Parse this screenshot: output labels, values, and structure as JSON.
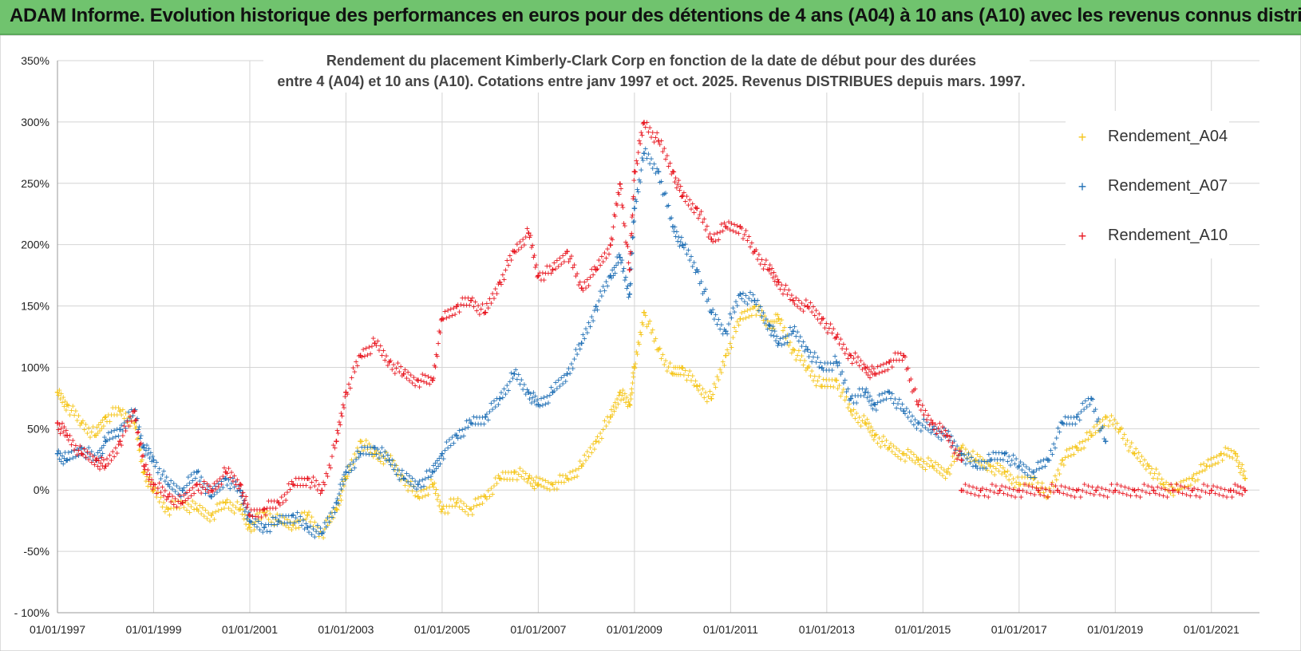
{
  "banner": {
    "title": "ADAM Informe. Evolution historique des performances en euros pour des détentions de 4 ans (A04) à 10 ans (A10) avec les revenus connus distribués"
  },
  "colors": {
    "banner": "#70c36e",
    "a04": "#f5c518",
    "a07": "#1f6fb5",
    "a10": "#e8131d",
    "grid": "#d4d4d4"
  },
  "chart_data": {
    "type": "scatter",
    "title_lines": [
      "Rendement du placement Kimberly-Clark Corp en fonction de la date de début pour des durées",
      "entre 4 (A04) et 10 ans (A10).  Cotations entre janv 1997 et oct. 2025.  Revenus DISTRIBUES depuis mars. 1997."
    ],
    "xlabel": "",
    "ylabel": "",
    "xlim": [
      1997.0,
      2022.0
    ],
    "ylim": [
      -100,
      350
    ],
    "y_ticks": [
      350,
      300,
      250,
      200,
      150,
      100,
      50,
      0,
      -50,
      -100
    ],
    "y_tick_labels": [
      "350%",
      "300%",
      "250%",
      "200%",
      "150%",
      "100%",
      "50%",
      "0%",
      "-50%",
      "- 100%"
    ],
    "x_ticks": [
      1997,
      1999,
      2001,
      2003,
      2005,
      2007,
      2009,
      2011,
      2013,
      2015,
      2017,
      2019,
      2021
    ],
    "x_tick_labels": [
      "01/01/1997",
      "01/01/1999",
      "01/01/2001",
      "01/01/2003",
      "01/01/2005",
      "01/01/2007",
      "01/01/2009",
      "01/01/2011",
      "01/01/2013",
      "01/01/2015",
      "01/01/2017",
      "01/01/2019",
      "01/01/2021"
    ],
    "legend_position": "top-right",
    "series": [
      {
        "name": "Rendement_A04",
        "x": [
          1997.0,
          1997.2,
          1997.5,
          1997.8,
          1998.0,
          1998.3,
          1998.6,
          1998.8,
          1999.0,
          1999.3,
          1999.6,
          1999.9,
          2000.2,
          2000.5,
          2000.8,
          2001.0,
          2001.3,
          2001.6,
          2001.9,
          2002.2,
          2002.5,
          2002.8,
          2003.0,
          2003.3,
          2003.6,
          2003.9,
          2004.2,
          2004.5,
          2004.8,
          2005.0,
          2005.3,
          2005.6,
          2005.9,
          2006.2,
          2006.5,
          2006.8,
          2007.0,
          2007.3,
          2007.6,
          2007.9,
          2008.2,
          2008.5,
          2008.7,
          2008.9,
          2009.0,
          2009.2,
          2009.5,
          2009.8,
          2010.0,
          2010.3,
          2010.6,
          2010.9,
          2011.2,
          2011.5,
          2011.8,
          2012.0,
          2012.3,
          2012.6,
          2012.9,
          2013.2,
          2013.5,
          2013.8,
          2014.0,
          2014.3,
          2014.6,
          2014.9,
          2015.2,
          2015.5,
          2015.8,
          2016.1,
          2016.4,
          2016.7,
          2017.0,
          2017.3,
          2017.6,
          2017.9,
          2018.2,
          2018.5,
          2018.8,
          2019.1,
          2019.4,
          2019.7,
          2020.0,
          2020.3,
          2020.6,
          2020.9,
          2021.2,
          2021.5,
          2021.7
        ],
        "values": [
          80,
          70,
          55,
          45,
          60,
          65,
          55,
          15,
          0,
          -15,
          -10,
          -15,
          -20,
          -10,
          -15,
          -30,
          -18,
          -25,
          -28,
          -20,
          -35,
          -15,
          10,
          40,
          30,
          25,
          10,
          -5,
          5,
          -15,
          -10,
          -15,
          -5,
          10,
          15,
          10,
          5,
          5,
          10,
          20,
          40,
          60,
          80,
          70,
          100,
          145,
          115,
          95,
          100,
          85,
          75,
          110,
          140,
          150,
          135,
          140,
          115,
          100,
          85,
          90,
          65,
          55,
          45,
          35,
          30,
          25,
          20,
          15,
          35,
          25,
          20,
          15,
          5,
          10,
          -5,
          25,
          35,
          45,
          60,
          50,
          30,
          20,
          5,
          0,
          10,
          20,
          30,
          30,
          10
        ]
      },
      {
        "name": "Rendement_A07",
        "x": [
          1997.0,
          1997.2,
          1997.5,
          1997.8,
          1998.0,
          1998.3,
          1998.6,
          1998.8,
          1999.0,
          1999.3,
          1999.6,
          1999.9,
          2000.2,
          2000.5,
          2000.8,
          2001.0,
          2001.3,
          2001.6,
          2001.9,
          2002.2,
          2002.5,
          2002.8,
          2003.0,
          2003.3,
          2003.6,
          2003.9,
          2004.2,
          2004.5,
          2004.8,
          2005.0,
          2005.3,
          2005.6,
          2005.9,
          2006.2,
          2006.5,
          2006.8,
          2007.0,
          2007.3,
          2007.6,
          2007.9,
          2008.2,
          2008.5,
          2008.7,
          2008.9,
          2009.0,
          2009.2,
          2009.5,
          2009.8,
          2010.0,
          2010.3,
          2010.6,
          2010.9,
          2011.2,
          2011.5,
          2011.8,
          2012.0,
          2012.3,
          2012.6,
          2012.9,
          2013.2,
          2013.5,
          2013.8,
          2014.0,
          2014.3,
          2014.6,
          2014.9,
          2015.2,
          2015.5,
          2015.8,
          2016.1,
          2016.4,
          2016.7,
          2017.0,
          2017.3,
          2017.6,
          2017.9,
          2018.2,
          2018.5,
          2018.8
        ],
        "values": [
          30,
          25,
          35,
          25,
          40,
          50,
          65,
          35,
          25,
          5,
          0,
          15,
          -5,
          10,
          0,
          -25,
          -30,
          -25,
          -20,
          -30,
          -35,
          -10,
          15,
          30,
          35,
          25,
          10,
          5,
          15,
          30,
          45,
          55,
          60,
          75,
          95,
          80,
          70,
          80,
          95,
          120,
          150,
          175,
          190,
          160,
          230,
          275,
          260,
          215,
          200,
          180,
          145,
          130,
          160,
          155,
          135,
          120,
          130,
          115,
          100,
          105,
          75,
          80,
          70,
          80,
          65,
          55,
          50,
          45,
          30,
          20,
          25,
          30,
          20,
          15,
          25,
          55,
          60,
          75,
          40
        ]
      },
      {
        "name": "Rendement_A10",
        "x": [
          1997.0,
          1997.2,
          1997.5,
          1997.8,
          1998.0,
          1998.3,
          1998.6,
          1998.8,
          1999.0,
          1999.3,
          1999.6,
          1999.9,
          2000.2,
          2000.5,
          2000.8,
          2001.0,
          2001.3,
          2001.6,
          2001.9,
          2002.2,
          2002.5,
          2002.8,
          2003.0,
          2003.3,
          2003.6,
          2003.9,
          2004.2,
          2004.5,
          2004.8,
          2005.0,
          2005.3,
          2005.6,
          2005.9,
          2006.2,
          2006.5,
          2006.8,
          2007.0,
          2007.3,
          2007.6,
          2007.9,
          2008.2,
          2008.5,
          2008.7,
          2008.9,
          2009.0,
          2009.2,
          2009.5,
          2009.8,
          2010.0,
          2010.3,
          2010.6,
          2010.9,
          2011.2,
          2011.5,
          2011.8,
          2012.0,
          2012.3,
          2012.6,
          2012.9,
          2013.2,
          2013.5,
          2013.8,
          2014.0,
          2014.3,
          2014.6,
          2014.9,
          2015.2,
          2015.5,
          2015.8
        ],
        "values": [
          55,
          45,
          30,
          25,
          20,
          40,
          65,
          20,
          5,
          -5,
          -10,
          5,
          0,
          15,
          5,
          -20,
          -15,
          -10,
          5,
          10,
          0,
          40,
          80,
          110,
          120,
          105,
          95,
          90,
          90,
          140,
          150,
          155,
          145,
          170,
          195,
          210,
          175,
          180,
          195,
          165,
          180,
          200,
          250,
          180,
          260,
          300,
          285,
          260,
          240,
          230,
          205,
          215,
          215,
          195,
          180,
          170,
          155,
          150,
          140,
          125,
          110,
          100,
          95,
          105,
          110,
          70,
          55,
          45,
          25
        ]
      },
      {
        "name": "Rendement_A10",
        "x": [
          2015.8,
          2016.2,
          2016.6,
          2017.0,
          2017.4,
          2017.8,
          2018.2,
          2018.6,
          2019.0,
          2019.4,
          2019.8,
          2020.2,
          2020.6,
          2021.0,
          2021.4,
          2021.7
        ],
        "values": [
          0,
          0,
          0,
          0,
          0,
          0,
          0,
          0,
          0,
          0,
          0,
          0,
          0,
          0,
          0,
          0
        ]
      }
    ]
  }
}
